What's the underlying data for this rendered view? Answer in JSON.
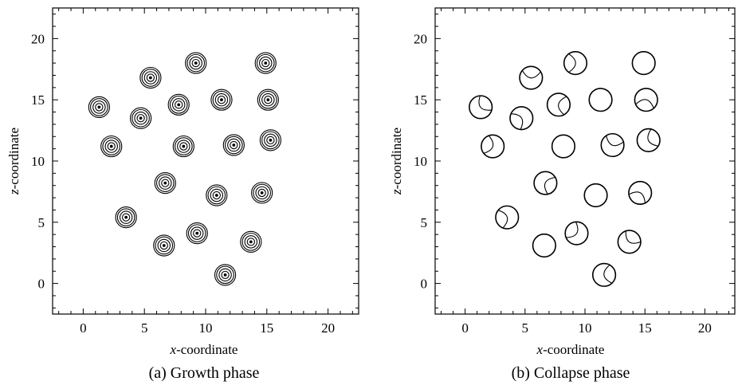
{
  "chart_data": [
    {
      "type": "scatter",
      "caption": "(a)  Growth phase",
      "xlabel_italic": "x",
      "xlabel_rest": "-coordinate",
      "ylabel_italic": "z",
      "ylabel_rest": "-coordinate",
      "xlim": [
        -2.5,
        22.5
      ],
      "ylim": [
        -2.5,
        22.5
      ],
      "xticks": [
        0,
        5,
        10,
        15,
        20
      ],
      "yticks": [
        0,
        5,
        10,
        15,
        20
      ],
      "grid": false,
      "marker": "concentric-rings",
      "ring_radii": [
        0.3,
        0.5,
        0.7,
        0.85
      ],
      "points": [
        {
          "x": 9.2,
          "y": 18.0
        },
        {
          "x": 14.9,
          "y": 18.0
        },
        {
          "x": 5.5,
          "y": 16.8
        },
        {
          "x": 1.3,
          "y": 14.4
        },
        {
          "x": 7.8,
          "y": 14.6
        },
        {
          "x": 11.3,
          "y": 15.0
        },
        {
          "x": 15.1,
          "y": 15.0
        },
        {
          "x": 4.7,
          "y": 13.5
        },
        {
          "x": 2.3,
          "y": 11.2
        },
        {
          "x": 8.2,
          "y": 11.2
        },
        {
          "x": 12.3,
          "y": 11.3
        },
        {
          "x": 15.3,
          "y": 11.7
        },
        {
          "x": 6.7,
          "y": 8.2
        },
        {
          "x": 10.9,
          "y": 7.2
        },
        {
          "x": 14.6,
          "y": 7.4
        },
        {
          "x": 3.5,
          "y": 5.4
        },
        {
          "x": 9.3,
          "y": 4.1
        },
        {
          "x": 6.6,
          "y": 3.1
        },
        {
          "x": 13.7,
          "y": 3.4
        },
        {
          "x": 11.6,
          "y": 0.7
        }
      ]
    },
    {
      "type": "scatter",
      "caption": "(b)  Collapse phase",
      "xlabel_italic": "x",
      "xlabel_rest": "-coordinate",
      "ylabel_italic": "z",
      "ylabel_rest": "-coordinate",
      "xlim": [
        -2.5,
        22.5
      ],
      "ylim": [
        -2.5,
        22.5
      ],
      "xticks": [
        0,
        5,
        10,
        15,
        20
      ],
      "yticks": [
        0,
        5,
        10,
        15,
        20
      ],
      "grid": false,
      "marker": "collapsing-circle",
      "radius": 0.95,
      "points": [
        {
          "x": 9.2,
          "y": 18.0
        },
        {
          "x": 14.9,
          "y": 18.0
        },
        {
          "x": 5.5,
          "y": 16.8
        },
        {
          "x": 1.3,
          "y": 14.4
        },
        {
          "x": 7.8,
          "y": 14.6
        },
        {
          "x": 11.3,
          "y": 15.0
        },
        {
          "x": 15.1,
          "y": 15.0
        },
        {
          "x": 4.7,
          "y": 13.5
        },
        {
          "x": 2.3,
          "y": 11.2
        },
        {
          "x": 8.2,
          "y": 11.2
        },
        {
          "x": 12.3,
          "y": 11.3
        },
        {
          "x": 15.3,
          "y": 11.7
        },
        {
          "x": 6.7,
          "y": 8.2
        },
        {
          "x": 10.9,
          "y": 7.2
        },
        {
          "x": 14.6,
          "y": 7.4
        },
        {
          "x": 3.5,
          "y": 5.4
        },
        {
          "x": 9.3,
          "y": 4.1
        },
        {
          "x": 6.6,
          "y": 3.1
        },
        {
          "x": 13.7,
          "y": 3.4
        },
        {
          "x": 11.6,
          "y": 0.7
        }
      ]
    }
  ]
}
